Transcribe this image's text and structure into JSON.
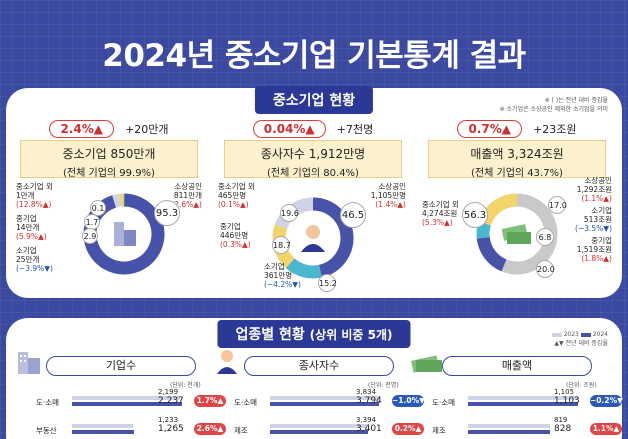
{
  "title": "2024년 중소기업 기본통계 결과",
  "section1": {
    "tag": "중소기업 현황",
    "notes": [
      "※ ( )는 전년 대비 증감율",
      "※ 소기업은 소상공인 제외한 소기업을 의미"
    ]
  },
  "colors": {
    "primary": "#2b3896",
    "dark": "#4653a8",
    "yellow": "#f3d46a",
    "teal": "#4bb7cf",
    "light": "#cfd3e6",
    "up": "#e04646",
    "down": "#2b59b8"
  },
  "cards": [
    {
      "change_pct": "2.4%▲",
      "change_abs": "+20만개",
      "headline": "중소기업 850만개",
      "share": "(전체 기업의 99.9%)",
      "icon": "building-icon",
      "labels": {
        "big": "95.3",
        "left1": "중소기업 외",
        "left1b": "1만개",
        "left1c": "(12.8%▲)",
        "left2": "중기업",
        "left2b": "14만개",
        "left2c": "(5.9%▲)",
        "left3": "소기업",
        "left3b": "25만개",
        "left3c": "(−3.9%▼)",
        "right1": "소상공인",
        "right1b": "811만개",
        "right1c": "(2.6%▲)",
        "s1": "0.1",
        "s2": "1.7",
        "s3": "2.9"
      }
    },
    {
      "change_pct": "0.04%▲",
      "change_abs": "+7천명",
      "headline": "종사자수 1,912만명",
      "share": "(전체 기업의 80.4%)",
      "icon": "worker-icon",
      "labels": {
        "big": "46.5",
        "left1": "중소기업 외",
        "left1b": "465만명",
        "left1c": "(0.1%▲)",
        "left2": "중기업",
        "left2b": "446만명",
        "left2c": "(0.3%▲)",
        "bottom": "소기업",
        "bottomb": "361만명",
        "bottomc": "(−4.2%▼)",
        "right1": "소상공인",
        "right1b": "1,105만명",
        "right1c": "(1.4%▲)",
        "s1": "19.6",
        "s2": "18.7",
        "s3": "15.2"
      }
    },
    {
      "change_pct": "0.7%▲",
      "change_abs": "+23조원",
      "headline": "매출액 3,324조원",
      "share": "(전체 기업의 43.7%)",
      "icon": "money-icon",
      "labels": {
        "big": "56.3",
        "left1": "중소기업 외",
        "left1b": "4,274조원",
        "left1c": "(5.3%▲)",
        "right1": "소상공인",
        "right1b": "1,292조원",
        "right1c": "(1.1%▲)",
        "right2": "소기업",
        "right2b": "513조원",
        "right2c": "(−3.5%▼)",
        "right3": "중기업",
        "right3b": "1,519조원",
        "right3c": "(1.8%▲)",
        "s1": "17.0",
        "s2": "6.8",
        "s3": "20.0"
      }
    }
  ],
  "section2": {
    "tag": "업종별 현황",
    "tag_sub": "(상위 비중 5개)",
    "legend": [
      "2023",
      "2024"
    ],
    "legend_note": "▲▼ 전년 대비 증감율",
    "tabs": [
      "기업수",
      "종사자수",
      "매출액"
    ],
    "units": [
      "(단위: 천개)",
      "(단위: 천명)",
      "(단위: 조원)"
    ]
  },
  "chart_data": [
    {
      "type": "pie",
      "title": "중소기업 850만개",
      "categories": [
        "소상공인",
        "소기업",
        "중기업",
        "중소기업 외"
      ],
      "values": [
        95.3,
        2.9,
        1.7,
        0.1
      ]
    },
    {
      "type": "pie",
      "title": "종사자수 1,912만명",
      "categories": [
        "소상공인",
        "소기업",
        "중기업",
        "중소기업 외"
      ],
      "values": [
        46.5,
        15.2,
        18.7,
        19.6
      ]
    },
    {
      "type": "pie",
      "title": "매출액 3,324조원",
      "categories": [
        "중소기업 외",
        "소상공인",
        "소기업",
        "중기업"
      ],
      "values": [
        56.3,
        17.0,
        6.8,
        20.0
      ]
    },
    {
      "type": "bar",
      "title": "기업수",
      "unit": "(단위: 천개)",
      "categories": [
        "도·소매",
        "부동산"
      ],
      "series": [
        {
          "name": "2023",
          "values": [
            2199,
            1233
          ]
        },
        {
          "name": "2024",
          "values": [
            2237,
            1265
          ]
        }
      ],
      "change": [
        "1.7%▲",
        "2.6%▲"
      ]
    },
    {
      "type": "bar",
      "title": "종사자수",
      "unit": "(단위: 천명)",
      "categories": [
        "도·소매",
        "제조"
      ],
      "series": [
        {
          "name": "2023",
          "values": [
            3834,
            3394
          ]
        },
        {
          "name": "2024",
          "values": [
            3794,
            3401
          ]
        }
      ],
      "change": [
        "−1.0%▼",
        "0.2%▲"
      ]
    },
    {
      "type": "bar",
      "title": "매출액",
      "unit": "(단위: 조원)",
      "categories": [
        "도·소매",
        "제조"
      ],
      "series": [
        {
          "name": "2023",
          "values": [
            1105,
            819
          ]
        },
        {
          "name": "2024",
          "values": [
            1103,
            828
          ]
        }
      ],
      "change": [
        "−0.2%▼",
        "1.1%▲"
      ]
    }
  ]
}
